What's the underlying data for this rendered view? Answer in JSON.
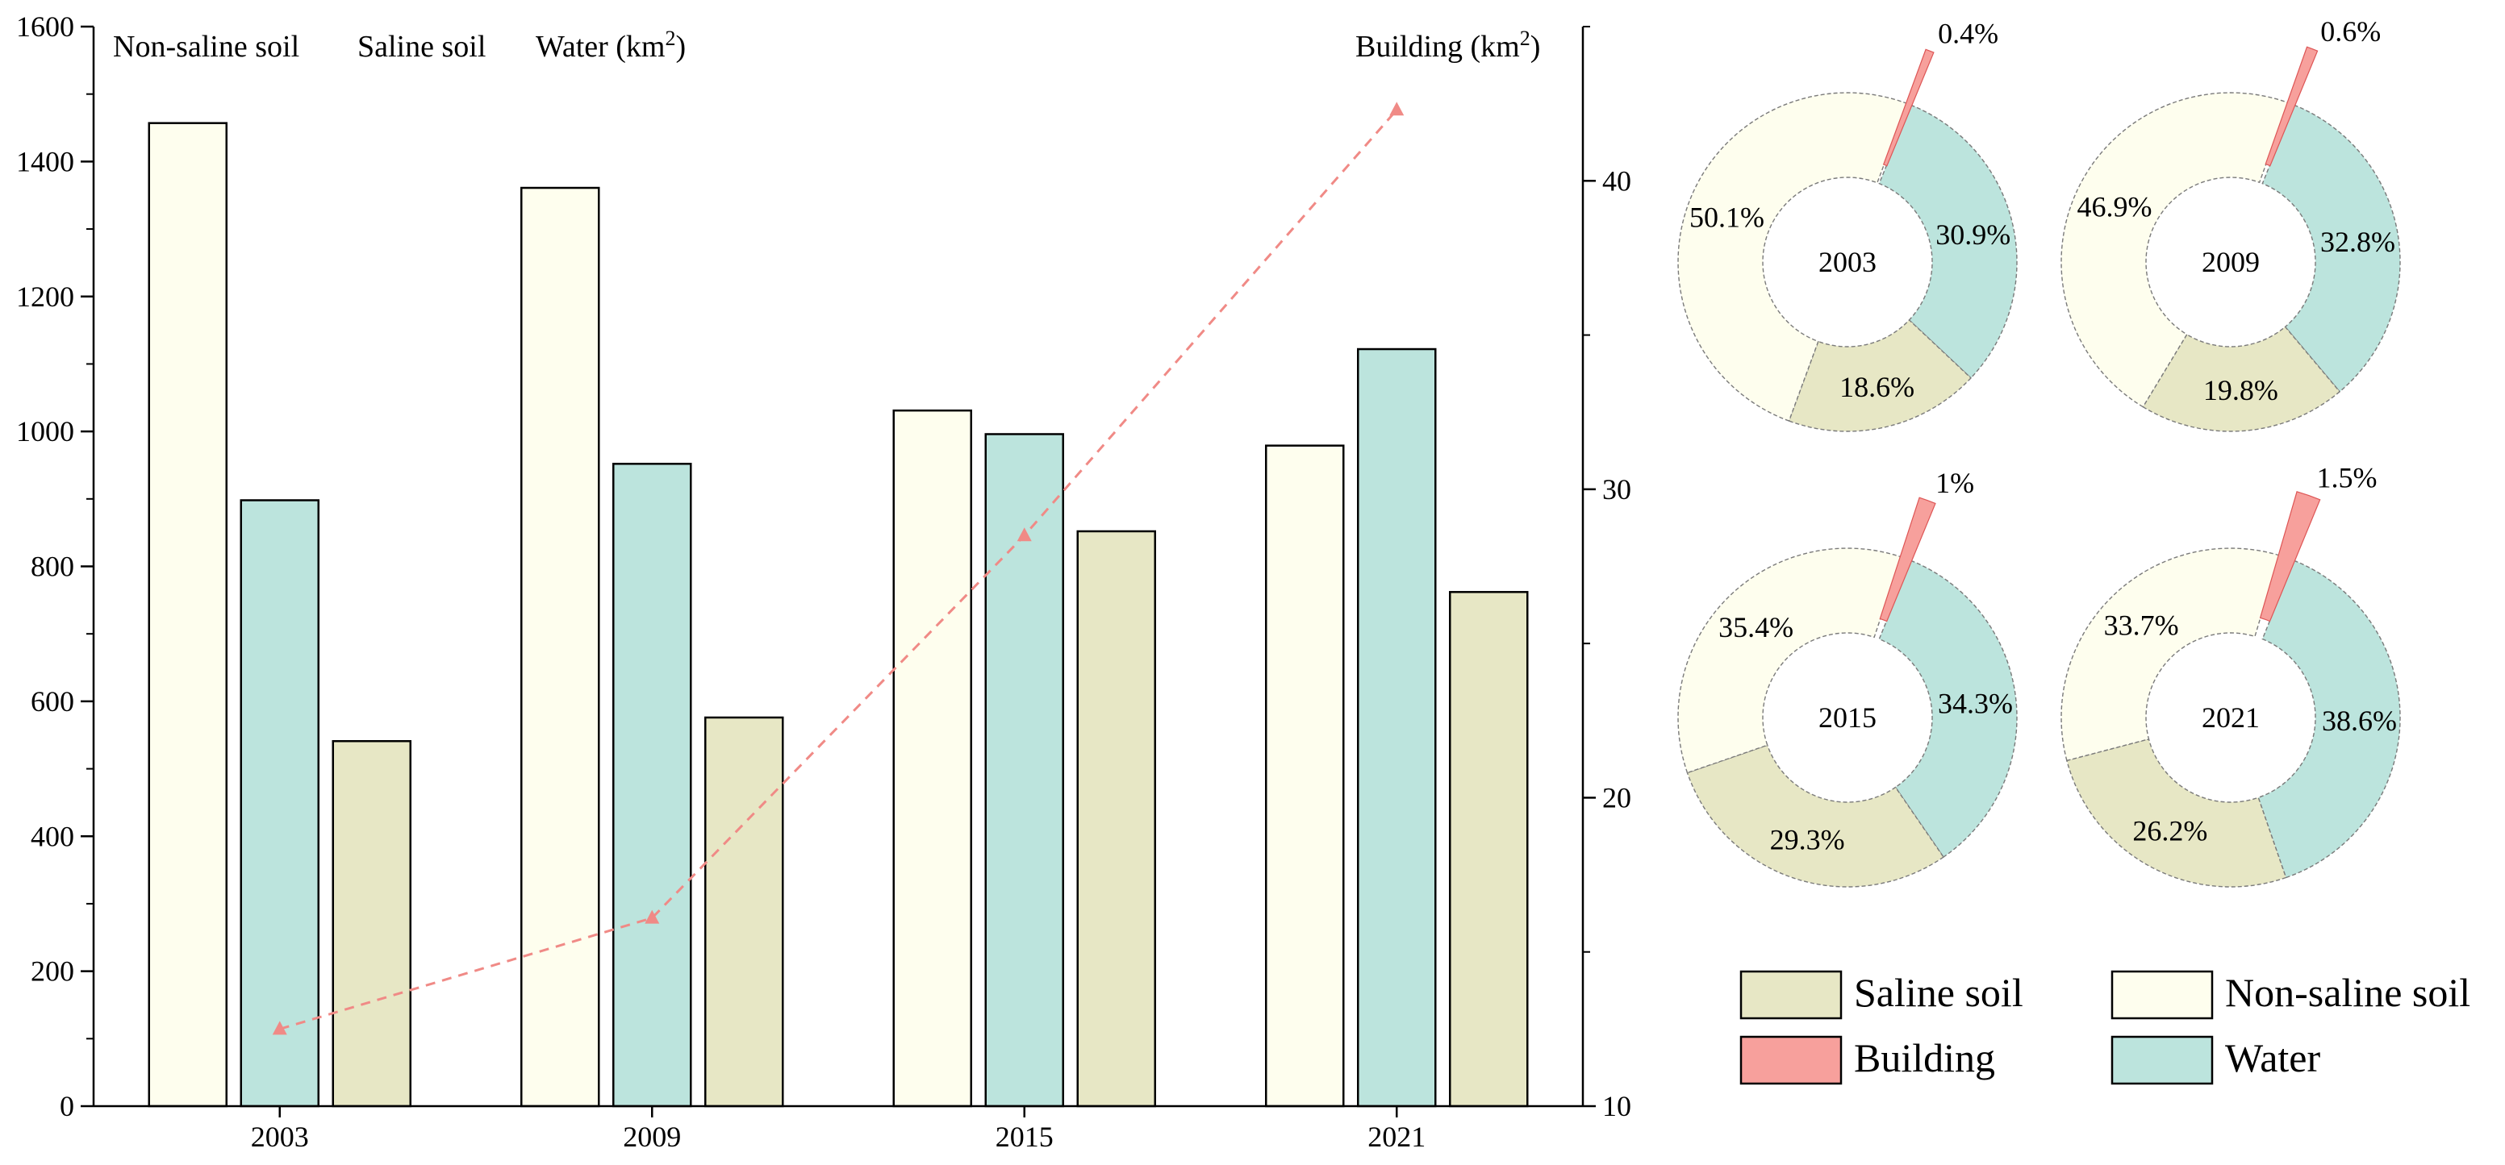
{
  "chart_data": [
    {
      "type": "bar",
      "categories": [
        "2003",
        "2009",
        "2015",
        "2021"
      ],
      "series": [
        {
          "name": "Non-saline soil",
          "key": "nonsaline",
          "axis": "left",
          "values": [
            1457,
            1361,
            1031,
            979
          ]
        },
        {
          "name": "Water",
          "key": "water",
          "axis": "left",
          "values": [
            898,
            952,
            996,
            1122
          ]
        },
        {
          "name": "Saline soil",
          "key": "saline",
          "axis": "left",
          "values": [
            541,
            576,
            852,
            762
          ]
        },
        {
          "name": "Building",
          "key": "building",
          "axis": "right",
          "type": "line",
          "values": [
            12.5,
            16.1,
            28.5,
            42.3
          ]
        }
      ],
      "left_axis": {
        "min": 0,
        "max": 1600,
        "ticks": [
          0,
          200,
          400,
          600,
          800,
          1000,
          1200,
          1400,
          1600
        ]
      },
      "right_axis": {
        "min": 10,
        "max": 45,
        "ticks": [
          10,
          20,
          30,
          40
        ]
      },
      "left_unit_labels": {
        "items": [
          "Non-saline soil",
          "Saline soil",
          "Water"
        ],
        "unit": "(km",
        "sup": "2",
        "close": ")"
      },
      "right_unit_label": {
        "text": "Building (km",
        "sup": "2",
        "close": ")"
      }
    },
    {
      "type": "pie",
      "donuts": [
        {
          "year": "2003",
          "slices": {
            "water": 30.9,
            "saline": 18.6,
            "nonsaline": 50.1,
            "building": 0.4
          },
          "labels": {
            "water": "30.9%",
            "saline": "18.6%",
            "nonsaline": "50.1%",
            "building": "0.4%"
          }
        },
        {
          "year": "2009",
          "slices": {
            "water": 32.8,
            "saline": 19.8,
            "nonsaline": 46.9,
            "building": 0.6
          },
          "labels": {
            "water": "32.8%",
            "saline": "19.8%",
            "nonsaline": "46.9%",
            "building": "0.6%"
          }
        },
        {
          "year": "2015",
          "slices": {
            "water": 34.3,
            "saline": 29.3,
            "nonsaline": 35.4,
            "building": 1.0
          },
          "labels": {
            "water": "34.3%",
            "saline": "29.3%",
            "nonsaline": "35.4%",
            "building": "1%"
          }
        },
        {
          "year": "2021",
          "slices": {
            "water": 38.6,
            "saline": 26.2,
            "nonsaline": 33.7,
            "building": 1.5
          },
          "labels": {
            "water": "38.6%",
            "saline": "26.2%",
            "nonsaline": "33.7%",
            "building": "1.5%"
          }
        }
      ]
    }
  ],
  "legend": [
    {
      "key": "saline",
      "label": "Saline soil"
    },
    {
      "key": "nonsaline",
      "label": "Non-saline soil"
    },
    {
      "key": "building",
      "label": "Building"
    },
    {
      "key": "water",
      "label": "Water"
    }
  ],
  "colors": {
    "nonsaline": "#FEFEEE",
    "water": "#BCE4DD",
    "saline": "#E7E7C5",
    "building": "#F7A09C",
    "line": "#F08A86",
    "axis": "#000000",
    "donut_edge": "#7A7A7A"
  }
}
